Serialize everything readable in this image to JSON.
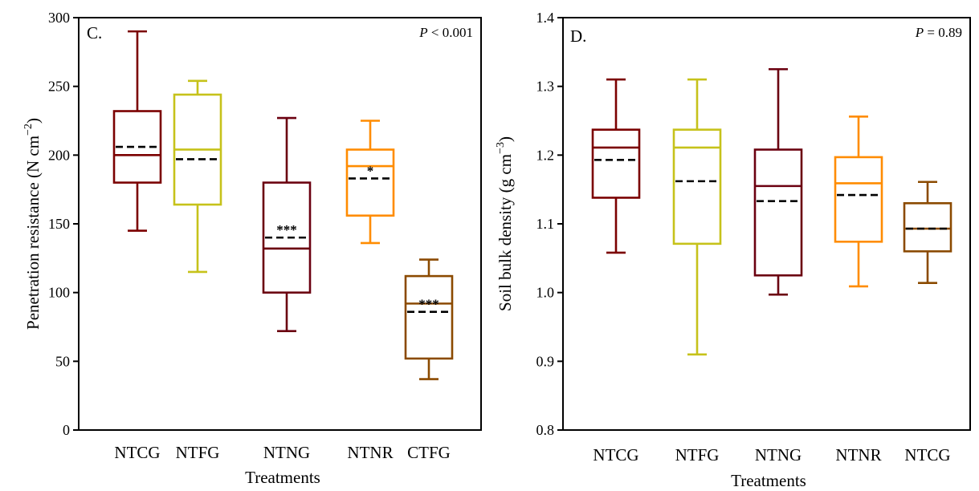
{
  "chart_data": [
    {
      "type": "box",
      "panel_label": "C.",
      "p_value": {
        "italic": "P",
        "rest": " < 0.001"
      },
      "xlabel": "Treatments",
      "ylabel": {
        "main": "Penetration resistance (N cm",
        "sup": "−2",
        "close": ")"
      },
      "ylim": [
        0,
        300
      ],
      "yticks": [
        "0",
        "50",
        "100",
        "150",
        "200",
        "250",
        "300"
      ],
      "categories": [
        "NTCG",
        "NTFG",
        "NTNG",
        "NTNR",
        "CTFG"
      ],
      "boxes": [
        {
          "category": "NTCG",
          "color": "#7b0000",
          "min": 145,
          "q1": 180,
          "median": 200,
          "mean": 206,
          "q3": 232,
          "max": 290,
          "sig": ""
        },
        {
          "category": "NTFG",
          "color": "#c6c21a",
          "min": 115,
          "q1": 164,
          "median": 204,
          "mean": 197,
          "q3": 244,
          "max": 254,
          "sig": ""
        },
        {
          "category": "NTNG",
          "color": "#6b0010",
          "min": 72,
          "q1": 100,
          "median": 132,
          "mean": 140,
          "q3": 180,
          "max": 227,
          "sig": "***"
        },
        {
          "category": "NTNR",
          "color": "#ff8c00",
          "min": 136,
          "q1": 156,
          "median": 192,
          "mean": 183,
          "q3": 204,
          "max": 225,
          "sig": "*"
        },
        {
          "category": "CTFG",
          "color": "#8b4a00",
          "min": 37,
          "q1": 52,
          "median": 92,
          "mean": 86,
          "q3": 112,
          "max": 124,
          "sig": "***"
        }
      ]
    },
    {
      "type": "box",
      "panel_label": "D.",
      "p_value": {
        "italic": "P",
        "rest": " = 0.89"
      },
      "xlabel": "Treatments",
      "ylabel": {
        "main": "Soil bulk density (g cm",
        "sup": "−3",
        "close": ")"
      },
      "ylim": [
        0.8,
        1.4
      ],
      "yticks": [
        "0.8",
        "0.9",
        "1.0",
        "1.1",
        "1.2",
        "1.3",
        "1.4"
      ],
      "categories": [
        "NTCG",
        "NTFG",
        "NTNG",
        "NTNR",
        "NTCG"
      ],
      "boxes": [
        {
          "category": "NTCG",
          "color": "#7b0000",
          "min": 1.058,
          "q1": 1.138,
          "median": 1.211,
          "mean": 1.193,
          "q3": 1.237,
          "max": 1.31,
          "sig": ""
        },
        {
          "category": "NTFG",
          "color": "#c6c21a",
          "min": 0.91,
          "q1": 1.071,
          "median": 1.211,
          "mean": 1.162,
          "q3": 1.237,
          "max": 1.31,
          "sig": ""
        },
        {
          "category": "NTNG",
          "color": "#6b0010",
          "min": 0.997,
          "q1": 1.025,
          "median": 1.155,
          "mean": 1.133,
          "q3": 1.208,
          "max": 1.325,
          "sig": ""
        },
        {
          "category": "NTNR",
          "color": "#ff8c00",
          "min": 1.009,
          "q1": 1.074,
          "median": 1.159,
          "mean": 1.142,
          "q3": 1.197,
          "max": 1.256,
          "sig": ""
        },
        {
          "category": "NTCG",
          "color": "#8b4a00",
          "min": 1.014,
          "q1": 1.06,
          "median": 1.093,
          "mean": 1.093,
          "q3": 1.13,
          "max": 1.161,
          "sig": ""
        }
      ]
    }
  ]
}
